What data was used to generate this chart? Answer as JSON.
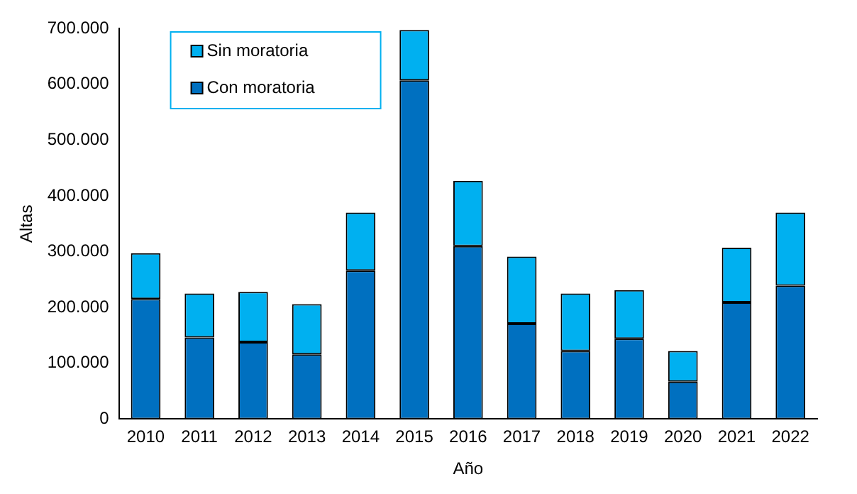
{
  "chart_data": {
    "type": "bar",
    "stacked": true,
    "xlabel": "Año",
    "ylabel": "Altas",
    "categories": [
      "2010",
      "2011",
      "2012",
      "2013",
      "2014",
      "2015",
      "2016",
      "2017",
      "2018",
      "2019",
      "2020",
      "2021",
      "2022"
    ],
    "series": [
      {
        "name": "Con moratoria",
        "color": "#0070c0",
        "values": [
          215000,
          146000,
          138000,
          116000,
          266000,
          607000,
          310000,
          171000,
          122000,
          144000,
          67000,
          209000,
          239000
        ]
      },
      {
        "name": "Sin moratoria",
        "color": "#00b0f0",
        "values": [
          82000,
          79000,
          90000,
          90000,
          104000,
          90000,
          117000,
          120000,
          103000,
          87000,
          55000,
          98000,
          131000
        ]
      }
    ],
    "ylim": [
      0,
      700000
    ],
    "yticks": [
      0,
      {
        "value": 100000,
        "label": "100.000"
      },
      {
        "value": 200000,
        "label": "200.000"
      },
      {
        "value": 300000,
        "label": "300.000"
      },
      {
        "value": 400000,
        "label": "400.000"
      },
      {
        "value": 500000,
        "label": "500.000"
      },
      {
        "value": 600000,
        "label": "600.000"
      },
      {
        "value": 700000,
        "label": "700.000"
      }
    ],
    "grid": false,
    "legend": "top left"
  }
}
